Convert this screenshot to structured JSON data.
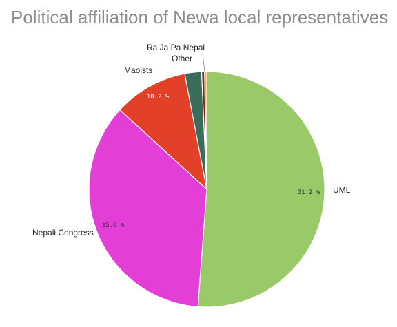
{
  "chart_data": {
    "type": "pie",
    "title": "Political affiliation of Newa local representatives",
    "slices": [
      {
        "label": "UML",
        "value": 51.2,
        "value_label": "51.2 %",
        "color": "#9ac96a",
        "label_color": "#333333"
      },
      {
        "label": "Nepali Congress",
        "value": 35.6,
        "value_label": "35.6 %",
        "color": "#e33fd6",
        "label_color": "#333333"
      },
      {
        "label": "Maoists",
        "value": 10.2,
        "value_label": "10.2 %",
        "color": "#e3402a",
        "label_color": "#ffffff"
      },
      {
        "label": "Other",
        "value": 2.3,
        "value_label": "",
        "color": "#3b6b59",
        "label_color": "#333333"
      },
      {
        "label": "Ra Ja Pa Nepal",
        "value": 0.4,
        "value_label": "",
        "color": "#7a2a20",
        "label_color": "#333333"
      },
      {
        "label": "",
        "value": 0.3,
        "value_label": "",
        "color": "#f2b35e",
        "label_color": "#333333"
      }
    ]
  }
}
